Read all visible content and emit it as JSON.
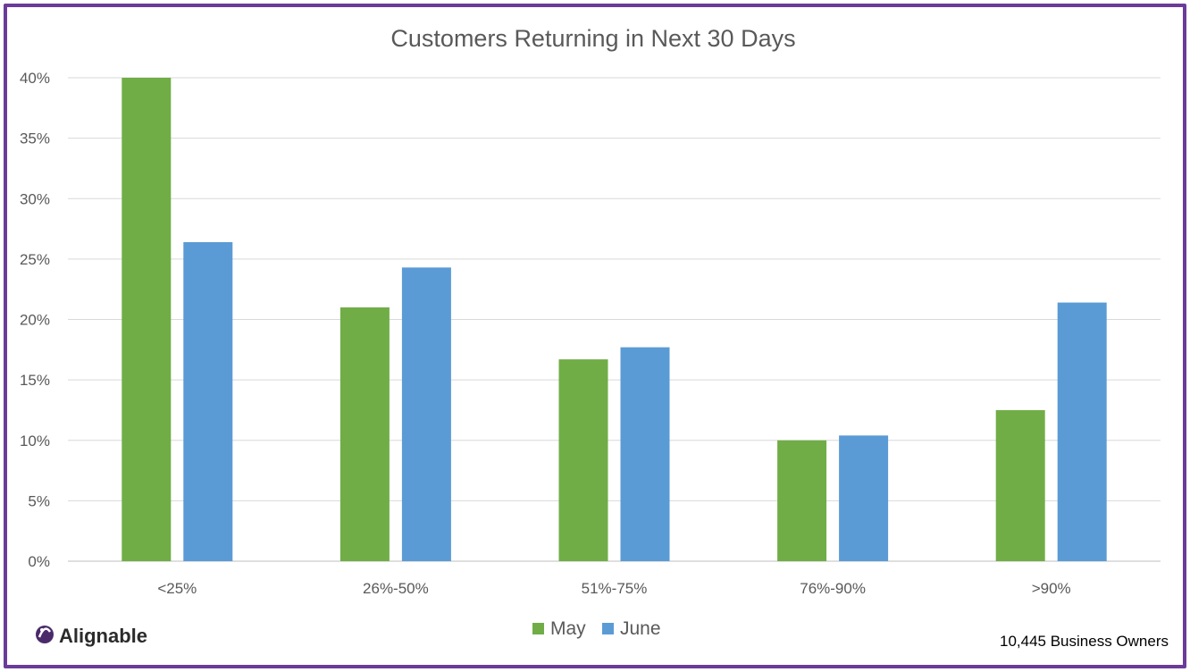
{
  "chart_data": {
    "type": "bar",
    "title": "Customers Returning in Next 30 Days",
    "categories": [
      "<25%",
      "26%-50%",
      "51%-75%",
      "76%-90%",
      ">90%"
    ],
    "series": [
      {
        "name": "May",
        "color": "#70ad47",
        "values": [
          40,
          21,
          16.7,
          10,
          12.5
        ]
      },
      {
        "name": "June",
        "color": "#5b9bd5",
        "values": [
          26.4,
          24.3,
          17.7,
          10.4,
          21.4
        ]
      }
    ],
    "ylim": [
      0,
      40
    ],
    "yticks": [
      "0%",
      "5%",
      "10%",
      "15%",
      "20%",
      "25%",
      "30%",
      "35%",
      "40%"
    ],
    "grid": true,
    "legend_position": "bottom"
  },
  "branding": {
    "logo_text": "Alignable",
    "logo_icon": "alignable-logo-icon"
  },
  "footnote": "10,445 Business Owners",
  "frame_color": "#6b3b9a"
}
